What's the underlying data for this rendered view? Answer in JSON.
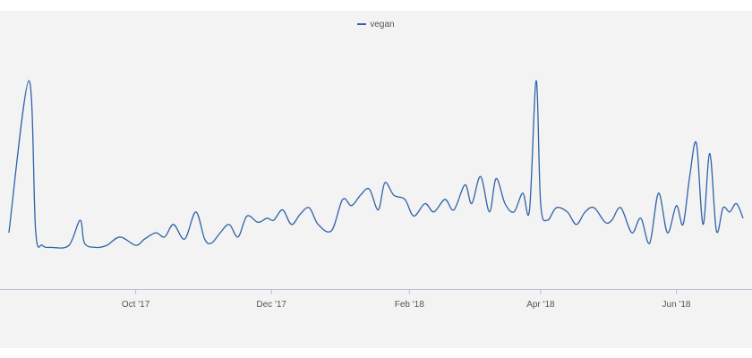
{
  "chart_data": {
    "type": "line",
    "series": [
      {
        "name": "vegan",
        "color": "#2f63a8",
        "x": [
          "2017-08-05",
          "2017-08-14",
          "2017-08-17",
          "2017-08-20",
          "2017-08-24",
          "2017-09-01",
          "2017-09-06",
          "2017-09-08",
          "2017-09-13",
          "2017-09-18",
          "2017-09-24",
          "2017-10-01",
          "2017-10-05",
          "2017-10-10",
          "2017-10-14",
          "2017-10-18",
          "2017-10-23",
          "2017-10-28",
          "2017-11-01",
          "2017-11-04",
          "2017-11-08",
          "2017-11-12",
          "2017-11-16",
          "2017-11-20",
          "2017-11-25",
          "2017-11-29",
          "2017-12-02",
          "2017-12-06",
          "2017-12-10",
          "2017-12-14",
          "2017-12-18",
          "2017-12-22",
          "2017-12-28",
          "2018-01-02",
          "2018-01-06",
          "2018-01-10",
          "2018-01-14",
          "2018-01-18",
          "2018-01-21",
          "2018-01-25",
          "2018-01-30",
          "2018-02-03",
          "2018-02-08",
          "2018-02-12",
          "2018-02-17",
          "2018-02-21",
          "2018-02-26",
          "2018-03-01",
          "2018-03-05",
          "2018-03-09",
          "2018-03-12",
          "2018-03-16",
          "2018-03-20",
          "2018-03-24",
          "2018-03-27",
          "2018-03-30",
          "2018-04-01",
          "2018-04-04",
          "2018-04-08",
          "2018-04-13",
          "2018-04-17",
          "2018-04-21",
          "2018-04-25",
          "2018-04-30",
          "2018-05-03",
          "2018-05-07",
          "2018-05-12",
          "2018-05-16",
          "2018-05-20",
          "2018-05-24",
          "2018-05-28",
          "2018-06-01",
          "2018-06-04",
          "2018-06-07",
          "2018-06-10",
          "2018-06-13",
          "2018-06-16",
          "2018-06-19",
          "2018-06-22",
          "2018-06-25",
          "2018-06-28",
          "2018-07-01"
        ],
        "y": [
          27,
          100,
          28,
          21,
          20,
          21,
          33,
          22,
          20,
          21,
          25,
          21,
          24,
          27,
          25,
          31,
          24,
          37,
          24,
          22,
          27,
          31,
          25,
          35,
          32,
          34,
          33,
          38,
          31,
          36,
          39,
          31,
          28,
          43,
          40,
          45,
          48,
          38,
          51,
          45,
          43,
          35,
          41,
          37,
          43,
          38,
          50,
          41,
          54,
          37,
          53,
          41,
          37,
          46,
          38,
          100,
          41,
          33,
          39,
          37,
          31,
          37,
          39,
          32,
          33,
          39,
          27,
          34,
          22,
          46,
          27,
          40,
          31,
          54,
          70,
          31,
          65,
          28,
          39,
          37,
          41,
          34
        ]
      }
    ],
    "xticks": [
      "Oct '17",
      "Dec '17",
      "Feb '18",
      "Apr '18",
      "Jun '18"
    ],
    "xtick_dates": [
      "2017-10-01",
      "2017-12-01",
      "2018-02-01",
      "2018-04-01",
      "2018-06-01"
    ],
    "xlim": [
      "2017-08-01",
      "2018-07-05"
    ],
    "ylim": [
      0,
      100
    ],
    "legend_position": "top-center",
    "grid": false
  }
}
